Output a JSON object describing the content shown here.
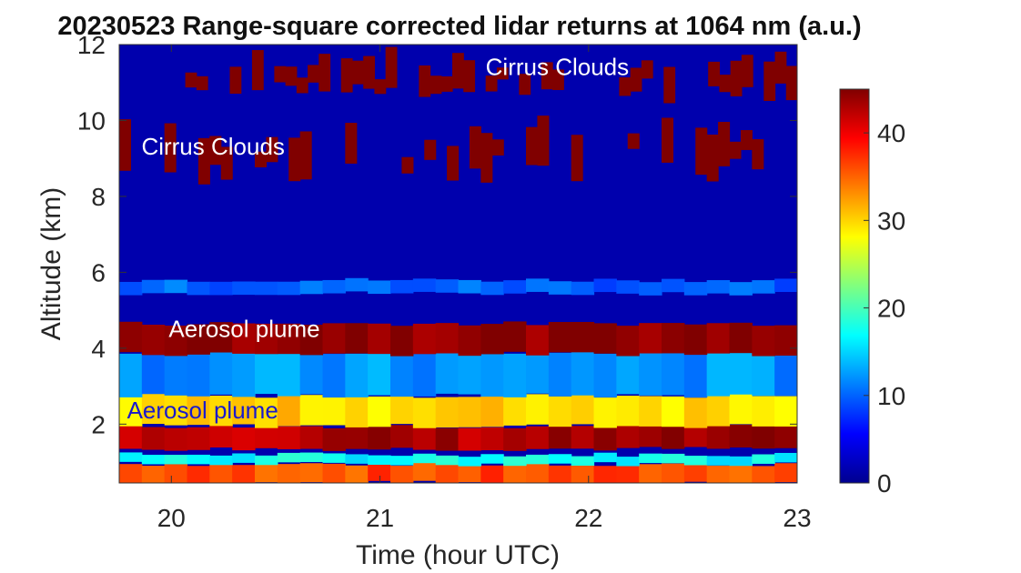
{
  "chart_data": {
    "type": "heatmap",
    "title": "20230523  Range-square corrected lidar returns at 1064 nm (a.u.)",
    "xlabel": "Time (hour UTC)",
    "ylabel": "Altitude (km)",
    "xlim": [
      19.75,
      23.0
    ],
    "ylim": [
      0.45,
      12.0
    ],
    "xticks": [
      20,
      21,
      22,
      23
    ],
    "yticks": [
      2,
      4,
      6,
      8,
      10,
      12
    ],
    "colorbar": {
      "colormap": "jet",
      "range": [
        0,
        45
      ],
      "ticks": [
        0,
        10,
        20,
        30,
        40
      ]
    },
    "layers": [
      {
        "feature": "near-surface layer",
        "altitude_km": [
          0.45,
          0.95
        ],
        "value": 36,
        "times": [
          19.75,
          23.0
        ]
      },
      {
        "feature": "thin layer",
        "altitude_km": [
          0.95,
          1.2
        ],
        "value": 17,
        "times": [
          19.75,
          23.0
        ]
      },
      {
        "feature": "aerosol plume core (lower)",
        "altitude_km": [
          1.35,
          1.95
        ],
        "value": 43,
        "times": [
          19.75,
          23.0
        ]
      },
      {
        "feature": "aerosol layer",
        "altitude_km": [
          1.95,
          2.75
        ],
        "value": 30,
        "times": [
          19.75,
          23.0
        ]
      },
      {
        "feature": "transition",
        "altitude_km": [
          2.75,
          3.9
        ],
        "value": 12,
        "times": [
          19.75,
          23.0
        ]
      },
      {
        "feature": "aerosol plume (upper)",
        "altitude_km": [
          3.85,
          4.65
        ],
        "value": 45,
        "times": [
          19.75,
          23.0
        ]
      },
      {
        "feature": "thin layer",
        "altitude_km": [
          5.45,
          5.8
        ],
        "value": 10,
        "times": [
          19.75,
          23.0
        ]
      },
      {
        "feature": "cirrus",
        "altitude_km": [
          8.3,
          10.0
        ],
        "value": 45,
        "times": [
          19.75,
          23.0
        ]
      },
      {
        "feature": "cirrus",
        "altitude_km": [
          10.5,
          11.8
        ],
        "value": 45,
        "times": [
          19.8,
          23.0
        ]
      }
    ],
    "background_value": 2
  },
  "annotations": [
    {
      "text": "Cirrus Clouds",
      "x": 21.85,
      "y": 11.2,
      "color": "#ffffff"
    },
    {
      "text": "Cirrus Clouds",
      "x": 20.2,
      "y": 9.1,
      "color": "#ffffff"
    },
    {
      "text": "Aerosol plume",
      "x": 20.35,
      "y": 4.3,
      "color": "#ffffff"
    },
    {
      "text": "Aerosol plume",
      "x": 20.15,
      "y": 2.15,
      "color": "#1a1acc"
    }
  ]
}
